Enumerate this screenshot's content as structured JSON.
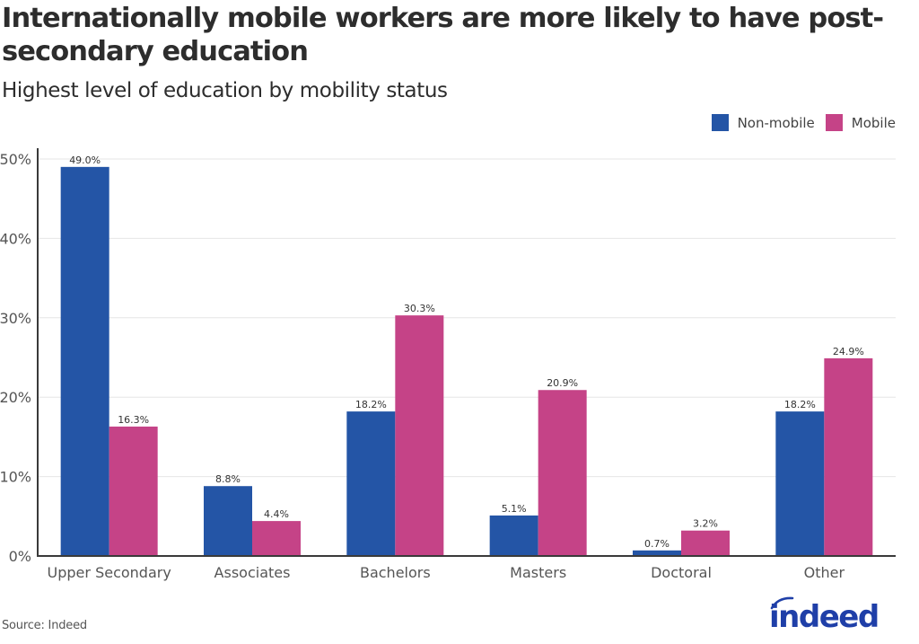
{
  "header": {
    "title": "Internationally mobile workers are more likely to have post-secondary education",
    "subtitle": "Highest level of education by mobility status"
  },
  "footer": {
    "source": "Source: Indeed",
    "logo_text": "indeed",
    "logo_icon": "indeed-logo-icon"
  },
  "colors": {
    "non_mobile": "#2455a6",
    "mobile": "#c54387",
    "axis": "#3a3a3a",
    "grid": "#e6e6e6",
    "logo": "#1f3fa8"
  },
  "chart_data": {
    "type": "bar",
    "title": "Internationally mobile workers are more likely to have post-secondary education",
    "subtitle": "Highest level of education by mobility status",
    "xlabel": "",
    "ylabel": "",
    "categories": [
      "Upper Secondary",
      "Associates",
      "Bachelors",
      "Masters",
      "Doctoral",
      "Other"
    ],
    "series": [
      {
        "name": "Non-mobile",
        "color": "#2455a6",
        "values": [
          49.0,
          8.8,
          18.2,
          5.1,
          0.7,
          18.2
        ],
        "labels": [
          "49.0%",
          "8.8%",
          "18.2%",
          "5.1%",
          "0.7%",
          "18.2%"
        ]
      },
      {
        "name": "Mobile",
        "color": "#c54387",
        "values": [
          16.3,
          4.4,
          30.3,
          20.9,
          3.2,
          24.9
        ],
        "labels": [
          "16.3%",
          "4.4%",
          "30.3%",
          "20.9%",
          "3.2%",
          "24.9%"
        ]
      }
    ],
    "ylim": [
      0,
      50
    ],
    "yticks": [
      0,
      10,
      20,
      30,
      40,
      50
    ],
    "ytick_labels": [
      "0%",
      "10%",
      "20%",
      "30%",
      "40%",
      "50%"
    ],
    "grid": true,
    "legend": {
      "position": "top-right",
      "entries": [
        "Non-mobile",
        "Mobile"
      ]
    }
  }
}
